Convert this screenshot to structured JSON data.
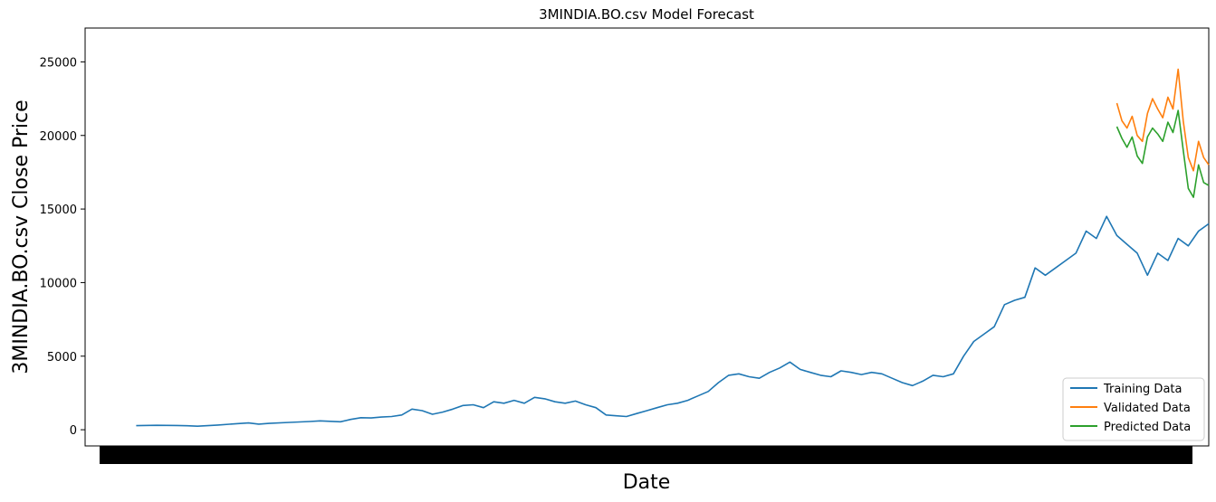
{
  "chart_data": {
    "type": "line",
    "title": "3MINDIA.BO.csv Model Forecast",
    "xlabel": "Date",
    "ylabel": "3MINDIA.BO.csv Close Price",
    "ylim": [
      -1100,
      27300
    ],
    "y_ticks": [
      0,
      5000,
      10000,
      15000,
      20000,
      25000
    ],
    "x_range": [
      -0.05,
      1.05
    ],
    "x_tick_labels_note": "overlapping date labels render as a solid black band",
    "legend_position": "lower-right",
    "series": [
      {
        "name": "Training Data",
        "color": "#1f77b4",
        "points": [
          [
            0.0,
            280
          ],
          [
            0.02,
            300
          ],
          [
            0.04,
            290
          ],
          [
            0.05,
            270
          ],
          [
            0.06,
            240
          ],
          [
            0.08,
            320
          ],
          [
            0.1,
            420
          ],
          [
            0.11,
            460
          ],
          [
            0.12,
            380
          ],
          [
            0.13,
            430
          ],
          [
            0.15,
            500
          ],
          [
            0.17,
            560
          ],
          [
            0.18,
            600
          ],
          [
            0.2,
            540
          ],
          [
            0.21,
            700
          ],
          [
            0.22,
            820
          ],
          [
            0.23,
            800
          ],
          [
            0.24,
            860
          ],
          [
            0.25,
            900
          ],
          [
            0.26,
            1000
          ],
          [
            0.27,
            1400
          ],
          [
            0.28,
            1300
          ],
          [
            0.29,
            1050
          ],
          [
            0.3,
            1200
          ],
          [
            0.31,
            1400
          ],
          [
            0.32,
            1650
          ],
          [
            0.33,
            1700
          ],
          [
            0.34,
            1500
          ],
          [
            0.35,
            1900
          ],
          [
            0.36,
            1800
          ],
          [
            0.37,
            2000
          ],
          [
            0.38,
            1800
          ],
          [
            0.39,
            2200
          ],
          [
            0.4,
            2100
          ],
          [
            0.41,
            1900
          ],
          [
            0.42,
            1800
          ],
          [
            0.43,
            1950
          ],
          [
            0.44,
            1700
          ],
          [
            0.45,
            1500
          ],
          [
            0.46,
            1000
          ],
          [
            0.47,
            950
          ],
          [
            0.48,
            900
          ],
          [
            0.49,
            1100
          ],
          [
            0.5,
            1300
          ],
          [
            0.51,
            1500
          ],
          [
            0.52,
            1700
          ],
          [
            0.53,
            1800
          ],
          [
            0.54,
            2000
          ],
          [
            0.55,
            2300
          ],
          [
            0.56,
            2600
          ],
          [
            0.57,
            3200
          ],
          [
            0.58,
            3700
          ],
          [
            0.59,
            3800
          ],
          [
            0.6,
            3600
          ],
          [
            0.61,
            3500
          ],
          [
            0.62,
            3900
          ],
          [
            0.63,
            4200
          ],
          [
            0.64,
            4600
          ],
          [
            0.65,
            4100
          ],
          [
            0.66,
            3900
          ],
          [
            0.67,
            3700
          ],
          [
            0.68,
            3600
          ],
          [
            0.69,
            4000
          ],
          [
            0.7,
            3900
          ],
          [
            0.71,
            3750
          ],
          [
            0.72,
            3900
          ],
          [
            0.73,
            3800
          ],
          [
            0.74,
            3500
          ],
          [
            0.75,
            3200
          ],
          [
            0.76,
            3000
          ],
          [
            0.77,
            3300
          ],
          [
            0.78,
            3700
          ],
          [
            0.79,
            3600
          ],
          [
            0.8,
            3800
          ],
          [
            0.81,
            5000
          ],
          [
            0.82,
            6000
          ],
          [
            0.83,
            6500
          ],
          [
            0.84,
            7000
          ],
          [
            0.85,
            8500
          ],
          [
            0.86,
            8800
          ],
          [
            0.87,
            9000
          ],
          [
            0.88,
            11000
          ],
          [
            0.89,
            10500
          ],
          [
            0.9,
            11000
          ],
          [
            0.91,
            11500
          ],
          [
            0.92,
            12000
          ],
          [
            0.93,
            13500
          ],
          [
            0.94,
            13000
          ],
          [
            0.95,
            14500
          ],
          [
            0.96,
            13200
          ],
          [
            0.97,
            12600
          ],
          [
            0.98,
            12000
          ],
          [
            0.99,
            10500
          ],
          [
            1.0,
            12000
          ],
          [
            1.01,
            11500
          ],
          [
            1.02,
            13000
          ],
          [
            1.03,
            12500
          ],
          [
            1.04,
            13500
          ],
          [
            1.05,
            14000
          ]
        ]
      },
      {
        "name": "Validated Data",
        "color": "#ff7f0e",
        "points": [
          [
            0.96,
            22200
          ],
          [
            0.965,
            21000
          ],
          [
            0.97,
            20500
          ],
          [
            0.975,
            21300
          ],
          [
            0.98,
            20000
          ],
          [
            0.985,
            19600
          ],
          [
            0.99,
            21500
          ],
          [
            0.995,
            22500
          ],
          [
            1.0,
            21800
          ],
          [
            1.005,
            21200
          ],
          [
            1.01,
            22600
          ],
          [
            1.015,
            21800
          ],
          [
            1.02,
            24500
          ],
          [
            1.025,
            21000
          ],
          [
            1.03,
            18500
          ],
          [
            1.035,
            17600
          ],
          [
            1.04,
            19600
          ],
          [
            1.045,
            18500
          ],
          [
            1.05,
            18000
          ]
        ]
      },
      {
        "name": "Predicted Data",
        "color": "#2ca02c",
        "points": [
          [
            0.96,
            20600
          ],
          [
            0.965,
            19800
          ],
          [
            0.97,
            19200
          ],
          [
            0.975,
            19900
          ],
          [
            0.98,
            18600
          ],
          [
            0.985,
            18100
          ],
          [
            0.99,
            19900
          ],
          [
            0.995,
            20500
          ],
          [
            1.0,
            20100
          ],
          [
            1.005,
            19600
          ],
          [
            1.01,
            20900
          ],
          [
            1.015,
            20200
          ],
          [
            1.02,
            21700
          ],
          [
            1.025,
            19000
          ],
          [
            1.03,
            16400
          ],
          [
            1.035,
            15800
          ],
          [
            1.04,
            18000
          ],
          [
            1.045,
            16800
          ],
          [
            1.05,
            16600
          ]
        ]
      }
    ]
  }
}
